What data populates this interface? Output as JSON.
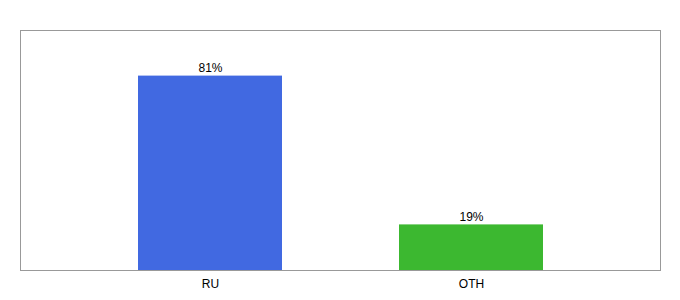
{
  "chart_data": {
    "type": "bar",
    "categories": [
      "RU",
      "OTH"
    ],
    "values": [
      81,
      19
    ],
    "value_labels": [
      "81%",
      "19%"
    ],
    "colors": [
      "#4169e1",
      "#3cb830"
    ],
    "ylim": [
      0,
      100
    ],
    "data_labels": true,
    "tick_labels": "x"
  }
}
